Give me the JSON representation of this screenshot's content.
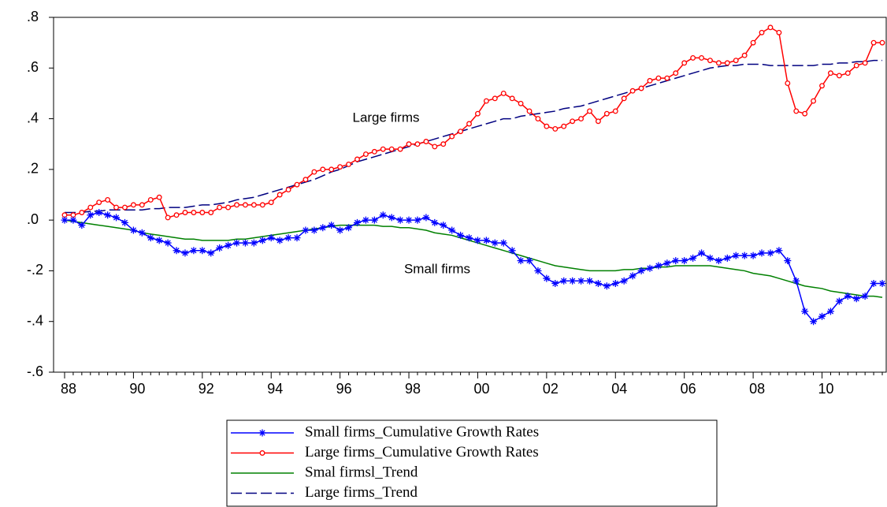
{
  "chart_data": {
    "type": "line",
    "categories": [
      "88",
      null,
      null,
      null,
      null,
      null,
      null,
      null,
      "90",
      null,
      null,
      null,
      null,
      null,
      null,
      null,
      "92",
      null,
      null,
      null,
      null,
      null,
      null,
      null,
      "94",
      null,
      null,
      null,
      null,
      null,
      null,
      null,
      "96",
      null,
      null,
      null,
      null,
      null,
      null,
      null,
      "98",
      null,
      null,
      null,
      null,
      null,
      null,
      null,
      "00",
      null,
      null,
      null,
      null,
      null,
      null,
      null,
      "02",
      null,
      null,
      null,
      null,
      null,
      null,
      null,
      "04",
      null,
      null,
      null,
      null,
      null,
      null,
      null,
      "06",
      null,
      null,
      null,
      null,
      null,
      null,
      null,
      "08",
      null,
      null,
      null,
      null,
      null,
      null,
      null,
      "10",
      null,
      null,
      null,
      null,
      null,
      null,
      null
    ],
    "ylim": [
      -0.6,
      0.8
    ],
    "yticks": [
      {
        "value": -0.6,
        "label": "-.6"
      },
      {
        "value": -0.4,
        "label": "-.4"
      },
      {
        "value": -0.2,
        "label": "-.2"
      },
      {
        "value": 0,
        "label": ".0"
      },
      {
        "value": 0.2,
        "label": ".2"
      },
      {
        "value": 0.4,
        "label": ".4"
      },
      {
        "value": 0.6,
        "label": ".6"
      },
      {
        "value": 0.8,
        "label": ".8"
      }
    ],
    "annotations": [
      "Large firms",
      "Small firms"
    ],
    "series": [
      {
        "name": "Small firms_Cumulative Growth Rates",
        "color": "#0000ff",
        "marker": "star",
        "dashed": false,
        "values": [
          0.0,
          0.0,
          -0.02,
          0.02,
          0.03,
          0.02,
          0.01,
          -0.01,
          -0.04,
          -0.05,
          -0.07,
          -0.08,
          -0.09,
          -0.12,
          -0.13,
          -0.12,
          -0.12,
          -0.13,
          -0.11,
          -0.1,
          -0.09,
          -0.09,
          -0.09,
          -0.08,
          -0.07,
          -0.08,
          -0.07,
          -0.07,
          -0.04,
          -0.04,
          -0.03,
          -0.02,
          -0.04,
          -0.03,
          -0.01,
          0.0,
          0.0,
          0.02,
          0.01,
          0.0,
          0.0,
          0.0,
          0.01,
          -0.01,
          -0.02,
          -0.04,
          -0.06,
          -0.07,
          -0.08,
          -0.08,
          -0.09,
          -0.09,
          -0.12,
          -0.16,
          -0.16,
          -0.2,
          -0.23,
          -0.25,
          -0.24,
          -0.24,
          -0.24,
          -0.24,
          -0.25,
          -0.26,
          -0.25,
          -0.24,
          -0.22,
          -0.2,
          -0.19,
          -0.18,
          -0.17,
          -0.16,
          -0.16,
          -0.15,
          -0.13,
          -0.15,
          -0.16,
          -0.15,
          -0.14,
          -0.14,
          -0.14,
          -0.13,
          -0.13,
          -0.12,
          -0.16,
          -0.24,
          -0.36,
          -0.4,
          -0.38,
          -0.36,
          -0.32,
          -0.3,
          -0.31,
          -0.3,
          -0.25,
          -0.25
        ]
      },
      {
        "name": "Large firms_Cumulative Growth Rates",
        "color": "#ff0000",
        "marker": "circle",
        "dashed": false,
        "values": [
          0.02,
          0.02,
          0.03,
          0.05,
          0.07,
          0.08,
          0.05,
          0.05,
          0.06,
          0.06,
          0.08,
          0.09,
          0.01,
          0.02,
          0.03,
          0.03,
          0.03,
          0.03,
          0.05,
          0.05,
          0.06,
          0.06,
          0.06,
          0.06,
          0.07,
          0.1,
          0.12,
          0.14,
          0.16,
          0.19,
          0.2,
          0.2,
          0.21,
          0.22,
          0.24,
          0.26,
          0.27,
          0.28,
          0.28,
          0.28,
          0.3,
          0.3,
          0.31,
          0.29,
          0.3,
          0.33,
          0.35,
          0.38,
          0.42,
          0.47,
          0.48,
          0.5,
          0.48,
          0.46,
          0.43,
          0.4,
          0.37,
          0.36,
          0.37,
          0.39,
          0.4,
          0.43,
          0.39,
          0.42,
          0.43,
          0.48,
          0.51,
          0.52,
          0.55,
          0.56,
          0.56,
          0.58,
          0.62,
          0.64,
          0.64,
          0.63,
          0.62,
          0.62,
          0.63,
          0.65,
          0.7,
          0.74,
          0.76,
          0.74,
          0.54,
          0.43,
          0.42,
          0.47,
          0.53,
          0.58,
          0.57,
          0.58,
          0.61,
          0.62,
          0.7,
          0.7
        ]
      },
      {
        "name": "Smal firmsl_Trend",
        "color": "#008000",
        "marker": "none",
        "dashed": false,
        "values": [
          0.0,
          -0.005,
          -0.01,
          -0.015,
          -0.02,
          -0.025,
          -0.03,
          -0.035,
          -0.04,
          -0.05,
          -0.055,
          -0.06,
          -0.065,
          -0.07,
          -0.075,
          -0.075,
          -0.08,
          -0.08,
          -0.08,
          -0.08,
          -0.075,
          -0.075,
          -0.07,
          -0.065,
          -0.06,
          -0.055,
          -0.05,
          -0.045,
          -0.04,
          -0.035,
          -0.03,
          -0.025,
          -0.02,
          -0.02,
          -0.02,
          -0.02,
          -0.02,
          -0.025,
          -0.025,
          -0.03,
          -0.03,
          -0.035,
          -0.04,
          -0.05,
          -0.055,
          -0.06,
          -0.07,
          -0.08,
          -0.09,
          -0.1,
          -0.11,
          -0.12,
          -0.13,
          -0.14,
          -0.15,
          -0.16,
          -0.17,
          -0.18,
          -0.185,
          -0.19,
          -0.195,
          -0.2,
          -0.2,
          -0.2,
          -0.2,
          -0.195,
          -0.195,
          -0.19,
          -0.19,
          -0.185,
          -0.185,
          -0.18,
          -0.18,
          -0.18,
          -0.18,
          -0.18,
          -0.185,
          -0.19,
          -0.195,
          -0.2,
          -0.21,
          -0.215,
          -0.22,
          -0.23,
          -0.24,
          -0.25,
          -0.26,
          -0.265,
          -0.27,
          -0.28,
          -0.285,
          -0.29,
          -0.295,
          -0.3,
          -0.3,
          -0.305
        ]
      },
      {
        "name": "Large firms_Trend",
        "color": "#000080",
        "marker": "none",
        "dashed": true,
        "values": [
          0.03,
          0.03,
          0.03,
          0.035,
          0.035,
          0.04,
          0.04,
          0.04,
          0.04,
          0.04,
          0.045,
          0.045,
          0.05,
          0.05,
          0.05,
          0.055,
          0.06,
          0.06,
          0.065,
          0.07,
          0.08,
          0.085,
          0.09,
          0.1,
          0.11,
          0.12,
          0.13,
          0.14,
          0.15,
          0.16,
          0.175,
          0.19,
          0.2,
          0.215,
          0.23,
          0.24,
          0.25,
          0.26,
          0.27,
          0.28,
          0.29,
          0.3,
          0.31,
          0.32,
          0.33,
          0.34,
          0.35,
          0.36,
          0.37,
          0.38,
          0.39,
          0.4,
          0.4,
          0.41,
          0.415,
          0.42,
          0.425,
          0.43,
          0.44,
          0.445,
          0.45,
          0.46,
          0.47,
          0.48,
          0.49,
          0.5,
          0.51,
          0.52,
          0.53,
          0.54,
          0.55,
          0.56,
          0.57,
          0.58,
          0.59,
          0.6,
          0.605,
          0.61,
          0.61,
          0.615,
          0.615,
          0.615,
          0.61,
          0.61,
          0.61,
          0.61,
          0.61,
          0.61,
          0.615,
          0.615,
          0.62,
          0.62,
          0.625,
          0.625,
          0.63,
          0.63
        ]
      }
    ]
  }
}
